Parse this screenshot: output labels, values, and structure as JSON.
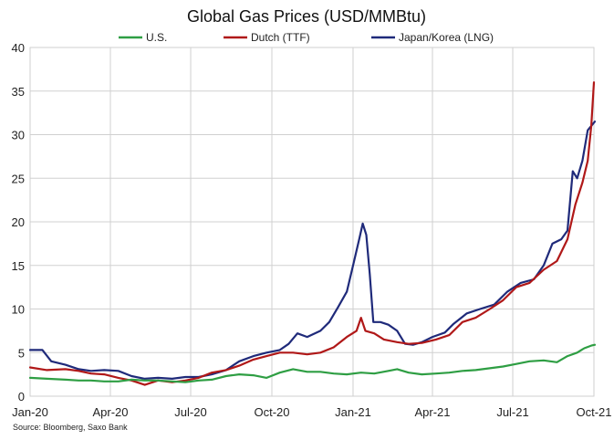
{
  "chart_data": {
    "type": "line",
    "title": "Global Gas Prices (USD/MMBtu)",
    "xlabel": "",
    "ylabel": "",
    "source": "Source: Bloomberg, Saxo Bank",
    "legend_position": "top",
    "grid": true,
    "x_axis": {
      "type": "date",
      "min": "2020-01-01",
      "max": "2021-10-01"
    },
    "x_ticks": [
      {
        "date": "2020-01-01",
        "label": "Jan-20"
      },
      {
        "date": "2020-04-01",
        "label": "Apr-20"
      },
      {
        "date": "2020-07-01",
        "label": "Jul-20"
      },
      {
        "date": "2020-10-01",
        "label": "Oct-20"
      },
      {
        "date": "2021-01-01",
        "label": "Jan-21"
      },
      {
        "date": "2021-04-01",
        "label": "Apr-21"
      },
      {
        "date": "2021-07-01",
        "label": "Jul-21"
      },
      {
        "date": "2021-10-01",
        "label": "Oct-21"
      }
    ],
    "y_ticks": [
      0,
      5,
      10,
      15,
      20,
      25,
      30,
      35,
      40
    ],
    "ylim": [
      0,
      40
    ],
    "series": [
      {
        "name": "Japan/Korea (LNG)",
        "color": "#1f2a7a",
        "points": [
          [
            "2020-01-01",
            5.3
          ],
          [
            "2020-01-15",
            5.3
          ],
          [
            "2020-01-25",
            4.0
          ],
          [
            "2020-02-10",
            3.6
          ],
          [
            "2020-02-25",
            3.1
          ],
          [
            "2020-03-10",
            2.9
          ],
          [
            "2020-03-25",
            3.0
          ],
          [
            "2020-04-10",
            2.9
          ],
          [
            "2020-04-25",
            2.3
          ],
          [
            "2020-05-10",
            2.0
          ],
          [
            "2020-05-25",
            2.1
          ],
          [
            "2020-06-10",
            2.0
          ],
          [
            "2020-06-25",
            2.2
          ],
          [
            "2020-07-10",
            2.2
          ],
          [
            "2020-07-25",
            2.5
          ],
          [
            "2020-08-10",
            3.0
          ],
          [
            "2020-08-25",
            4.0
          ],
          [
            "2020-09-10",
            4.6
          ],
          [
            "2020-09-25",
            5.0
          ],
          [
            "2020-10-10",
            5.3
          ],
          [
            "2020-10-20",
            6.0
          ],
          [
            "2020-10-30",
            7.2
          ],
          [
            "2020-11-10",
            6.8
          ],
          [
            "2020-11-25",
            7.5
          ],
          [
            "2020-12-05",
            8.5
          ],
          [
            "2020-12-15",
            10.2
          ],
          [
            "2020-12-25",
            12.0
          ],
          [
            "2021-01-01",
            15.0
          ],
          [
            "2021-01-08",
            18.0
          ],
          [
            "2021-01-12",
            19.8
          ],
          [
            "2021-01-16",
            18.5
          ],
          [
            "2021-01-20",
            14.0
          ],
          [
            "2021-01-24",
            8.5
          ],
          [
            "2021-02-01",
            8.5
          ],
          [
            "2021-02-10",
            8.2
          ],
          [
            "2021-02-20",
            7.5
          ],
          [
            "2021-03-01",
            6.0
          ],
          [
            "2021-03-10",
            5.9
          ],
          [
            "2021-03-20",
            6.2
          ],
          [
            "2021-04-01",
            6.8
          ],
          [
            "2021-04-15",
            7.3
          ],
          [
            "2021-04-25",
            8.3
          ],
          [
            "2021-05-10",
            9.5
          ],
          [
            "2021-05-25",
            10.0
          ],
          [
            "2021-06-10",
            10.5
          ],
          [
            "2021-06-25",
            12.0
          ],
          [
            "2021-07-10",
            13.0
          ],
          [
            "2021-07-25",
            13.4
          ],
          [
            "2021-08-05",
            15.0
          ],
          [
            "2021-08-15",
            17.5
          ],
          [
            "2021-08-25",
            18.0
          ],
          [
            "2021-09-01",
            19.0
          ],
          [
            "2021-09-07",
            25.8
          ],
          [
            "2021-09-12",
            25.0
          ],
          [
            "2021-09-18",
            27.0
          ],
          [
            "2021-09-24",
            30.5
          ],
          [
            "2021-09-28",
            31.0
          ],
          [
            "2021-10-02",
            31.5
          ]
        ]
      },
      {
        "name": "Dutch (TTF)",
        "color": "#b01818",
        "points": [
          [
            "2020-01-01",
            3.3
          ],
          [
            "2020-01-20",
            3.0
          ],
          [
            "2020-02-10",
            3.1
          ],
          [
            "2020-02-25",
            2.9
          ],
          [
            "2020-03-10",
            2.6
          ],
          [
            "2020-03-25",
            2.5
          ],
          [
            "2020-04-10",
            2.1
          ],
          [
            "2020-04-25",
            1.8
          ],
          [
            "2020-05-10",
            1.3
          ],
          [
            "2020-05-25",
            1.8
          ],
          [
            "2020-06-10",
            1.6
          ],
          [
            "2020-06-25",
            1.8
          ],
          [
            "2020-07-10",
            2.1
          ],
          [
            "2020-07-25",
            2.7
          ],
          [
            "2020-08-10",
            3.0
          ],
          [
            "2020-08-25",
            3.5
          ],
          [
            "2020-09-10",
            4.2
          ],
          [
            "2020-09-25",
            4.6
          ],
          [
            "2020-10-10",
            5.0
          ],
          [
            "2020-10-25",
            5.0
          ],
          [
            "2020-11-10",
            4.8
          ],
          [
            "2020-11-25",
            5.0
          ],
          [
            "2020-12-10",
            5.6
          ],
          [
            "2020-12-25",
            6.8
          ],
          [
            "2021-01-05",
            7.5
          ],
          [
            "2021-01-10",
            9.0
          ],
          [
            "2021-01-15",
            7.5
          ],
          [
            "2021-01-25",
            7.2
          ],
          [
            "2021-02-05",
            6.5
          ],
          [
            "2021-02-20",
            6.2
          ],
          [
            "2021-03-05",
            6.0
          ],
          [
            "2021-03-20",
            6.1
          ],
          [
            "2021-04-05",
            6.5
          ],
          [
            "2021-04-20",
            7.0
          ],
          [
            "2021-05-05",
            8.5
          ],
          [
            "2021-05-20",
            9.0
          ],
          [
            "2021-06-05",
            10.0
          ],
          [
            "2021-06-20",
            11.0
          ],
          [
            "2021-07-05",
            12.5
          ],
          [
            "2021-07-20",
            13.0
          ],
          [
            "2021-08-05",
            14.5
          ],
          [
            "2021-08-20",
            15.5
          ],
          [
            "2021-09-01",
            18.0
          ],
          [
            "2021-09-10",
            22.0
          ],
          [
            "2021-09-18",
            24.5
          ],
          [
            "2021-09-24",
            27.0
          ],
          [
            "2021-09-28",
            31.0
          ],
          [
            "2021-10-01",
            36.0
          ]
        ]
      },
      {
        "name": "U.S.",
        "color": "#2e9e43",
        "points": [
          [
            "2020-01-01",
            2.1
          ],
          [
            "2020-01-20",
            2.0
          ],
          [
            "2020-02-10",
            1.9
          ],
          [
            "2020-02-25",
            1.8
          ],
          [
            "2020-03-10",
            1.8
          ],
          [
            "2020-03-25",
            1.7
          ],
          [
            "2020-04-10",
            1.7
          ],
          [
            "2020-04-25",
            1.9
          ],
          [
            "2020-05-10",
            1.8
          ],
          [
            "2020-05-25",
            1.8
          ],
          [
            "2020-06-10",
            1.7
          ],
          [
            "2020-06-25",
            1.6
          ],
          [
            "2020-07-10",
            1.8
          ],
          [
            "2020-07-25",
            1.9
          ],
          [
            "2020-08-10",
            2.3
          ],
          [
            "2020-08-25",
            2.5
          ],
          [
            "2020-09-10",
            2.4
          ],
          [
            "2020-09-25",
            2.1
          ],
          [
            "2020-10-10",
            2.7
          ],
          [
            "2020-10-25",
            3.1
          ],
          [
            "2020-11-10",
            2.8
          ],
          [
            "2020-11-25",
            2.8
          ],
          [
            "2020-12-10",
            2.6
          ],
          [
            "2020-12-25",
            2.5
          ],
          [
            "2021-01-10",
            2.7
          ],
          [
            "2021-01-25",
            2.6
          ],
          [
            "2021-02-10",
            2.9
          ],
          [
            "2021-02-20",
            3.1
          ],
          [
            "2021-03-05",
            2.7
          ],
          [
            "2021-03-20",
            2.5
          ],
          [
            "2021-04-05",
            2.6
          ],
          [
            "2021-04-20",
            2.7
          ],
          [
            "2021-05-05",
            2.9
          ],
          [
            "2021-05-20",
            3.0
          ],
          [
            "2021-06-05",
            3.2
          ],
          [
            "2021-06-20",
            3.4
          ],
          [
            "2021-07-05",
            3.7
          ],
          [
            "2021-07-20",
            4.0
          ],
          [
            "2021-08-05",
            4.1
          ],
          [
            "2021-08-20",
            3.9
          ],
          [
            "2021-09-01",
            4.6
          ],
          [
            "2021-09-12",
            5.0
          ],
          [
            "2021-09-20",
            5.5
          ],
          [
            "2021-09-28",
            5.8
          ],
          [
            "2021-10-02",
            5.9
          ]
        ]
      }
    ],
    "legend_order": [
      "U.S.",
      "Dutch (TTF)",
      "Japan/Korea (LNG)"
    ]
  }
}
